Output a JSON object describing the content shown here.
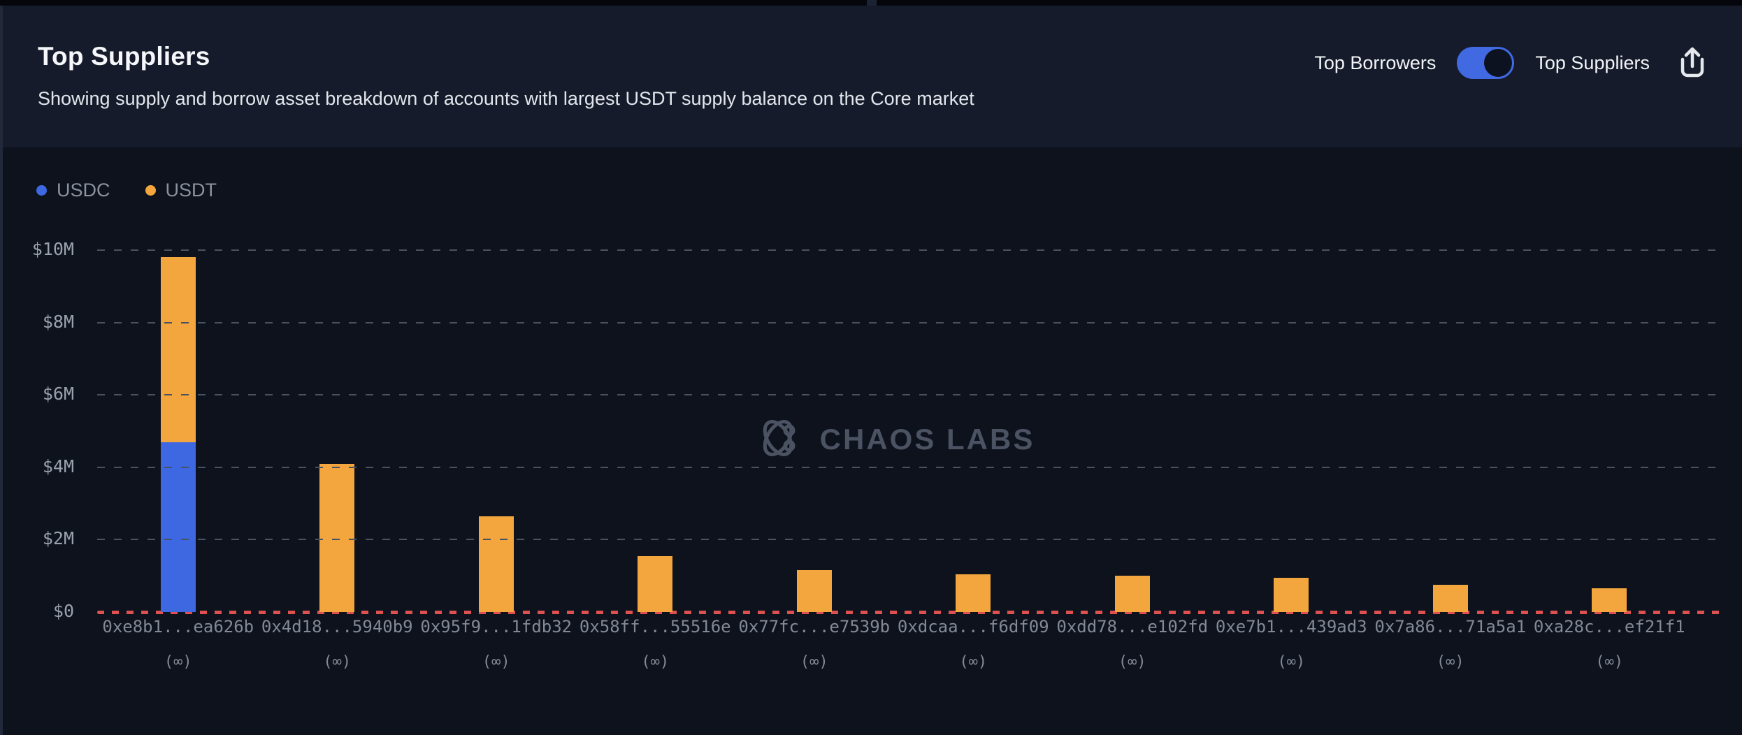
{
  "header": {
    "title": "Top Suppliers",
    "subtitle": "Showing supply and borrow asset breakdown of accounts with largest USDT supply balance on the Core market",
    "toggle": {
      "left_label": "Top Borrowers",
      "right_label": "Top Suppliers",
      "selected": "Top Suppliers",
      "track_color": "#4169e1",
      "knob_color": "#0c1220"
    },
    "share_icon": "share-icon"
  },
  "legend": {
    "items": [
      {
        "label": "USDC",
        "color": "#3d68e1"
      },
      {
        "label": "USDT",
        "color": "#f2a63d"
      }
    ]
  },
  "watermark": {
    "logo_icon": "chaos-labs-logo-icon",
    "text": "CHAOS LABS"
  },
  "chart_data": {
    "type": "bar",
    "stacked": true,
    "title": "Top Suppliers",
    "unit": "USD millions",
    "categories": [
      "0xe8b1...ea626b",
      "0x4d18...5940b9",
      "0x95f9...1fdb32",
      "0x58ff...55516e",
      "0x77fc...e7539b",
      "0xdcaa...f6df09",
      "0xdd78...e102fd",
      "0xe7b1...439ad3",
      "0x7a86...71a5a1",
      "0xa28c...ef21f1"
    ],
    "category_sublabels": [
      "(∞)",
      "(∞)",
      "(∞)",
      "(∞)",
      "(∞)",
      "(∞)",
      "(∞)",
      "(∞)",
      "(∞)",
      "(∞)"
    ],
    "series": [
      {
        "name": "USDC",
        "color": "#3d68e1",
        "values": [
          4.7,
          0,
          0,
          0,
          0,
          0,
          0,
          0,
          0,
          0
        ]
      },
      {
        "name": "USDT",
        "color": "#f2a63d",
        "values": [
          5.1,
          4.1,
          2.65,
          1.55,
          1.15,
          1.05,
          1.0,
          0.95,
          0.75,
          0.65
        ]
      }
    ],
    "ylim": [
      0,
      10
    ],
    "ytick_labels": [
      "$10M",
      "$8M",
      "$6M",
      "$4M",
      "$2M",
      "$0"
    ],
    "ytick_values": [
      10,
      8,
      6,
      4,
      2,
      0
    ],
    "grid": "dashed horizontal gray",
    "zero_line_color": "#df5150",
    "legend_position": "top-left"
  }
}
